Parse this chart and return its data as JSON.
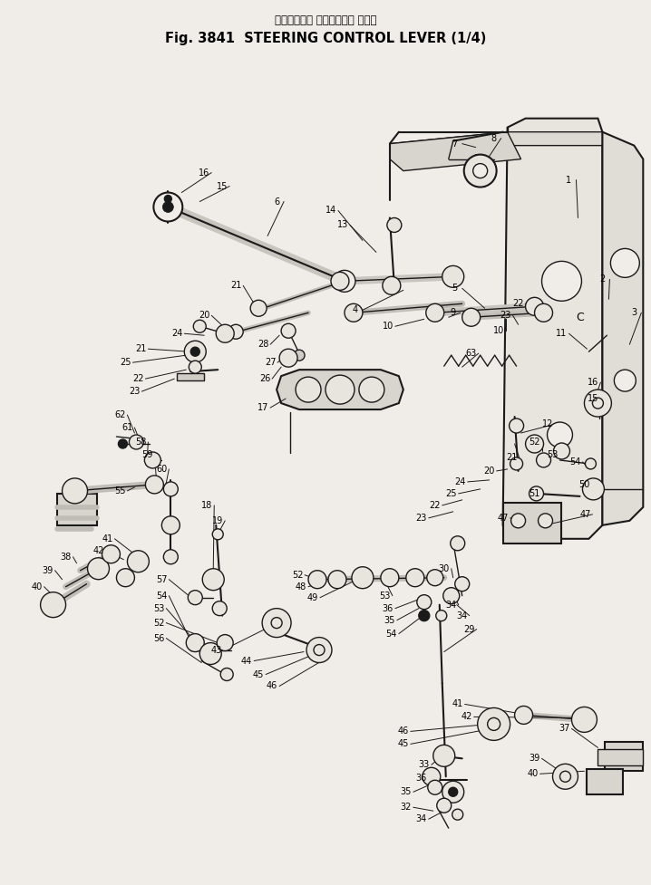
{
  "title_japanese": "ステアリング コントロール レバー",
  "title_english": "Fig. 3841  STEERING CONTROL LEVER (1/4)",
  "bg_color": "#f0ede8",
  "line_color": "#1a1a1a",
  "text_color": "#000000",
  "fig_width": 7.18,
  "fig_height": 9.77,
  "label_fontsize": 7.0,
  "title_fontsize_jp": 8.5,
  "title_fontsize_en": 10.5
}
